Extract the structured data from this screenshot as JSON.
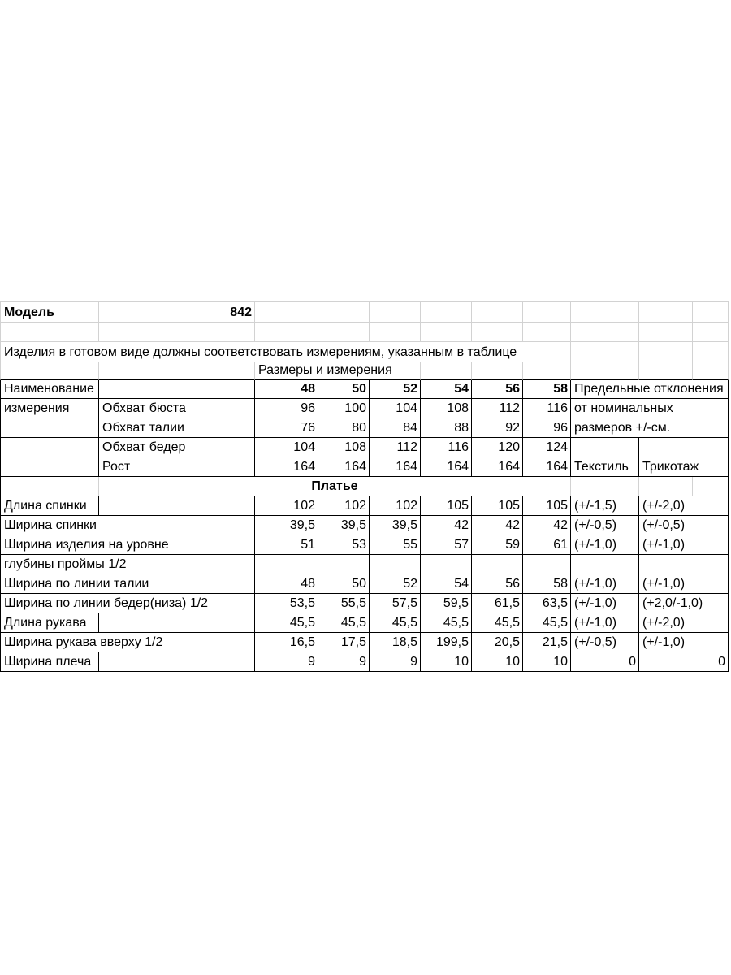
{
  "document": {
    "background": "#ffffff",
    "text_color": "#000000",
    "table_border_color": "#000000",
    "gridline_color": "#d2d2d2"
  },
  "header_block": {
    "model_label": "Модель",
    "model_value": "842",
    "note": "Изделия в готовом виде должны соответствовать измерениям, указанным в таблице",
    "sizes_caption": "Размеры и измерения"
  },
  "size_table": {
    "name_header_line1": "Наименование",
    "name_header_line2": "измерения",
    "size_columns": [
      "48",
      "50",
      "52",
      "54",
      "56",
      "58"
    ],
    "tolerance_header": "Предельные отклонения",
    "tolerance_note_line1": "от номинальных",
    "tolerance_note_line2": "размеров +/-см.",
    "tolerance_material_1": "Текстиль",
    "tolerance_material_2": "Трикотаж",
    "body_rows": [
      {
        "label": "Обхват бюста",
        "values": [
          "96",
          "100",
          "104",
          "108",
          "112",
          "116"
        ]
      },
      {
        "label": "Обхват талии",
        "values": [
          "76",
          "80",
          "84",
          "88",
          "92",
          "96"
        ]
      },
      {
        "label": "Обхват бедер",
        "values": [
          "104",
          "108",
          "112",
          "116",
          "120",
          "124"
        ]
      },
      {
        "label": "Рост",
        "values": [
          "164",
          "164",
          "164",
          "164",
          "164",
          "164"
        ]
      }
    ],
    "section_title": "Платье",
    "dress_rows": [
      {
        "label": "Длина спинки",
        "label_merged": false,
        "values": [
          "102",
          "102",
          "102",
          "105",
          "105",
          "105"
        ],
        "tol_textile": "(+/-1,5)",
        "tol_knit": "(+/-2,0)"
      },
      {
        "label": "Ширина спинки",
        "label_merged": true,
        "values": [
          "39,5",
          "39,5",
          "39,5",
          "42",
          "42",
          "42"
        ],
        "tol_textile": "(+/-0,5)",
        "tol_knit": "(+/-0,5)"
      },
      {
        "label": "Ширина изделия на уровне",
        "label_merged": true,
        "values": [
          "51",
          "53",
          "55",
          "57",
          "59",
          "61"
        ],
        "tol_textile": "(+/-1,0)",
        "tol_knit": "(+/-1,0)"
      },
      {
        "label": "глубины проймы 1/2",
        "label_merged": true,
        "values": [
          "",
          "",
          "",
          "",
          "",
          ""
        ],
        "tol_textile": "",
        "tol_knit": ""
      },
      {
        "label": "Ширина по линии талии",
        "label_merged": true,
        "values": [
          "48",
          "50",
          "52",
          "54",
          "56",
          "58"
        ],
        "tol_textile": "(+/-1,0)",
        "tol_knit": "(+/-1,0)"
      },
      {
        "label": "Ширина по линии бедер(низа) 1/2",
        "label_merged": true,
        "values": [
          "53,5",
          "55,5",
          "57,5",
          "59,5",
          "61,5",
          "63,5"
        ],
        "tol_textile": "(+/-1,0)",
        "tol_knit": "(+2,0/-1,0)"
      },
      {
        "label": "Длина рукава",
        "label_merged": false,
        "values": [
          "45,5",
          "45,5",
          "45,5",
          "45,5",
          "45,5",
          "45,5"
        ],
        "tol_textile": "(+/-1,0)",
        "tol_knit": "(+/-2,0)"
      },
      {
        "label": "Ширина рукава вверху 1/2",
        "label_merged": true,
        "values": [
          "16,5",
          "17,5",
          "18,5",
          "199,5",
          "20,5",
          "21,5"
        ],
        "tol_textile": "(+/-0,5)",
        "tol_knit": "(+/-1,0)"
      },
      {
        "label": "Ширина плеча",
        "label_merged": false,
        "values": [
          "9",
          "9",
          "9",
          "10",
          "10",
          "10"
        ],
        "tol_textile": "0",
        "tol_knit": "0",
        "tol_align": "right"
      }
    ]
  }
}
